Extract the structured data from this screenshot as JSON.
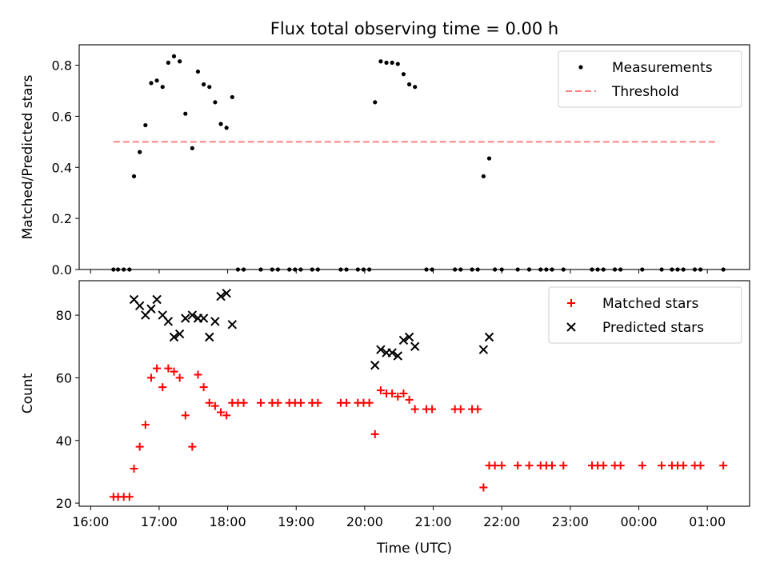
{
  "chart_data": {
    "type": "scatter",
    "title": "Flux total observing time = 0.00 h",
    "xlabel": "Time (UTC)",
    "x_ticks": [
      "16:00",
      "17:00",
      "18:00",
      "19:00",
      "20:00",
      "21:00",
      "22:00",
      "23:00",
      "00:00",
      "01:00"
    ],
    "panels": [
      {
        "ylabel": "Matched/Predicted stars",
        "ylim": [
          0,
          0.88
        ],
        "y_ticks": [
          "0.0",
          "0.2",
          "0.4",
          "0.6",
          "0.8"
        ],
        "legend": {
          "location": "top-right"
        },
        "series": [
          {
            "name": "Measurements",
            "marker": "dot",
            "color": "#000000",
            "points": [
              [
                "16:20",
                0
              ],
              [
                "16:24",
                0
              ],
              [
                "16:29",
                0
              ],
              [
                "16:34",
                0
              ],
              [
                "16:38",
                0.365
              ],
              [
                "16:43",
                0.46
              ],
              [
                "16:48",
                0.565
              ],
              [
                "16:53",
                0.73
              ],
              [
                "16:58",
                0.74
              ],
              [
                "17:03",
                0.715
              ],
              [
                "17:08",
                0.81
              ],
              [
                "17:13",
                0.835
              ],
              [
                "17:18",
                0.815
              ],
              [
                "17:23",
                0.61
              ],
              [
                "17:29",
                0.475
              ],
              [
                "17:34",
                0.775
              ],
              [
                "17:39",
                0.725
              ],
              [
                "17:44",
                0.715
              ],
              [
                "17:49",
                0.655
              ],
              [
                "17:54",
                0.57
              ],
              [
                "17:59",
                0.555
              ],
              [
                "18:04",
                0.675
              ],
              [
                "18:09",
                0
              ],
              [
                "18:14",
                0
              ],
              [
                "18:29",
                0
              ],
              [
                "18:39",
                0
              ],
              [
                "18:44",
                0
              ],
              [
                "18:54",
                0
              ],
              [
                "18:59",
                0
              ],
              [
                "19:04",
                0
              ],
              [
                "19:14",
                0
              ],
              [
                "19:19",
                0
              ],
              [
                "19:39",
                0
              ],
              [
                "19:44",
                0
              ],
              [
                "19:54",
                0
              ],
              [
                "19:59",
                0
              ],
              [
                "20:04",
                0
              ],
              [
                "20:09",
                0.655
              ],
              [
                "20:14",
                0.815
              ],
              [
                "20:19",
                0.81
              ],
              [
                "20:24",
                0.81
              ],
              [
                "20:29",
                0.805
              ],
              [
                "20:34",
                0.765
              ],
              [
                "20:39",
                0.725
              ],
              [
                "20:44",
                0.715
              ],
              [
                "20:54",
                0
              ],
              [
                "20:59",
                0
              ],
              [
                "21:19",
                0
              ],
              [
                "21:24",
                0
              ],
              [
                "21:34",
                0
              ],
              [
                "21:39",
                0
              ],
              [
                "21:44",
                0.365
              ],
              [
                "21:49",
                0.435
              ],
              [
                "21:54",
                0
              ],
              [
                "22:00",
                0
              ],
              [
                "22:14",
                0
              ],
              [
                "22:24",
                0
              ],
              [
                "22:34",
                0
              ],
              [
                "22:39",
                0
              ],
              [
                "22:44",
                0
              ],
              [
                "22:54",
                0
              ],
              [
                "23:19",
                0
              ],
              [
                "23:24",
                0
              ],
              [
                "23:29",
                0
              ],
              [
                "23:39",
                0
              ],
              [
                "23:44",
                0
              ],
              [
                "24:03",
                0
              ],
              [
                "24:20",
                0
              ],
              [
                "24:29",
                0
              ],
              [
                "24:34",
                0
              ],
              [
                "24:39",
                0
              ],
              [
                "24:49",
                0
              ],
              [
                "24:54",
                0
              ],
              [
                "25:14",
                0
              ]
            ]
          },
          {
            "name": "Threshold",
            "kind": "line",
            "style": "dashed",
            "color": "#ff8080",
            "x": [
              "16:20",
              "25:10"
            ],
            "y": [
              0.5,
              0.5
            ]
          }
        ]
      },
      {
        "ylabel": "Count",
        "ylim": [
          19,
          91
        ],
        "y_ticks": [
          "20",
          "40",
          "60",
          "80"
        ],
        "legend": {
          "location": "top-right"
        },
        "series": [
          {
            "name": "Matched stars",
            "marker": "plus",
            "color": "#ff0000",
            "points": [
              [
                "16:20",
                22
              ],
              [
                "16:24",
                22
              ],
              [
                "16:29",
                22
              ],
              [
                "16:34",
                22
              ],
              [
                "16:38",
                31
              ],
              [
                "16:43",
                38
              ],
              [
                "16:48",
                45
              ],
              [
                "16:53",
                60
              ],
              [
                "16:58",
                63
              ],
              [
                "17:03",
                57
              ],
              [
                "17:08",
                63
              ],
              [
                "17:13",
                62
              ],
              [
                "17:18",
                60
              ],
              [
                "17:23",
                48
              ],
              [
                "17:29",
                38
              ],
              [
                "17:34",
                61
              ],
              [
                "17:39",
                57
              ],
              [
                "17:44",
                52
              ],
              [
                "17:49",
                51
              ],
              [
                "17:54",
                49
              ],
              [
                "17:59",
                48
              ],
              [
                "18:04",
                52
              ],
              [
                "18:09",
                52
              ],
              [
                "18:14",
                52
              ],
              [
                "18:29",
                52
              ],
              [
                "18:39",
                52
              ],
              [
                "18:44",
                52
              ],
              [
                "18:54",
                52
              ],
              [
                "18:59",
                52
              ],
              [
                "19:04",
                52
              ],
              [
                "19:14",
                52
              ],
              [
                "19:19",
                52
              ],
              [
                "19:39",
                52
              ],
              [
                "19:44",
                52
              ],
              [
                "19:54",
                52
              ],
              [
                "19:59",
                52
              ],
              [
                "20:04",
                52
              ],
              [
                "20:09",
                42
              ],
              [
                "20:14",
                56
              ],
              [
                "20:19",
                55
              ],
              [
                "20:24",
                55
              ],
              [
                "20:29",
                54
              ],
              [
                "20:34",
                55
              ],
              [
                "20:39",
                53
              ],
              [
                "20:44",
                50
              ],
              [
                "20:54",
                50
              ],
              [
                "20:59",
                50
              ],
              [
                "21:19",
                50
              ],
              [
                "21:24",
                50
              ],
              [
                "21:34",
                50
              ],
              [
                "21:39",
                50
              ],
              [
                "21:44",
                25
              ],
              [
                "21:49",
                32
              ],
              [
                "21:54",
                32
              ],
              [
                "22:00",
                32
              ],
              [
                "22:14",
                32
              ],
              [
                "22:24",
                32
              ],
              [
                "22:34",
                32
              ],
              [
                "22:39",
                32
              ],
              [
                "22:44",
                32
              ],
              [
                "22:54",
                32
              ],
              [
                "23:19",
                32
              ],
              [
                "23:24",
                32
              ],
              [
                "23:29",
                32
              ],
              [
                "23:39",
                32
              ],
              [
                "23:44",
                32
              ],
              [
                "24:03",
                32
              ],
              [
                "24:20",
                32
              ],
              [
                "24:29",
                32
              ],
              [
                "24:34",
                32
              ],
              [
                "24:39",
                32
              ],
              [
                "24:49",
                32
              ],
              [
                "24:54",
                32
              ],
              [
                "25:14",
                32
              ]
            ]
          },
          {
            "name": "Predicted stars",
            "marker": "x",
            "color": "#000000",
            "points": [
              [
                "16:38",
                85
              ],
              [
                "16:43",
                83
              ],
              [
                "16:48",
                80
              ],
              [
                "16:53",
                82
              ],
              [
                "16:58",
                85
              ],
              [
                "17:03",
                80
              ],
              [
                "17:08",
                78
              ],
              [
                "17:13",
                73
              ],
              [
                "17:18",
                74
              ],
              [
                "17:23",
                79
              ],
              [
                "17:29",
                80
              ],
              [
                "17:34",
                79
              ],
              [
                "17:39",
                79
              ],
              [
                "17:44",
                73
              ],
              [
                "17:49",
                78
              ],
              [
                "17:54",
                86
              ],
              [
                "17:59",
                87
              ],
              [
                "18:04",
                77
              ],
              [
                "20:09",
                64
              ],
              [
                "20:14",
                69
              ],
              [
                "20:19",
                68
              ],
              [
                "20:24",
                68
              ],
              [
                "20:29",
                67
              ],
              [
                "20:34",
                72
              ],
              [
                "20:39",
                73
              ],
              [
                "20:44",
                70
              ],
              [
                "21:44",
                69
              ],
              [
                "21:49",
                73
              ]
            ]
          }
        ]
      }
    ]
  }
}
